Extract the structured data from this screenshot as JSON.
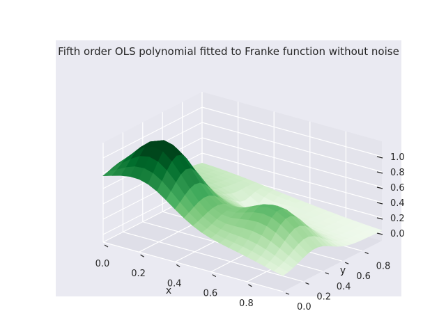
{
  "chart_data": {
    "type": "surface3d",
    "title": "Fifth order OLS polynomial fitted to Franke function without noise",
    "xlabel": "x",
    "ylabel": "y",
    "zlabel": "",
    "xlim": [
      0,
      1
    ],
    "ylim": [
      0,
      1
    ],
    "zlim": [
      -0.1,
      1.2
    ],
    "x_ticks": [
      "0.0",
      "0.2",
      "0.4",
      "0.6",
      "0.8"
    ],
    "y_ticks": [
      "0.0",
      "0.2",
      "0.4",
      "0.6",
      "0.8"
    ],
    "z_ticks": [
      "0.0",
      "0.2",
      "0.4",
      "0.6",
      "0.8",
      "1.0"
    ],
    "grid": true,
    "colormap": "Greens",
    "surface": "fifth-order OLS polynomial fit of the Franke function over [0,1] x [0,1]"
  },
  "colors": {
    "pane": "#eaeaf2",
    "grid": "#ffffff",
    "cmap_low": "#f7fcf5",
    "cmap_high": "#00441b"
  }
}
